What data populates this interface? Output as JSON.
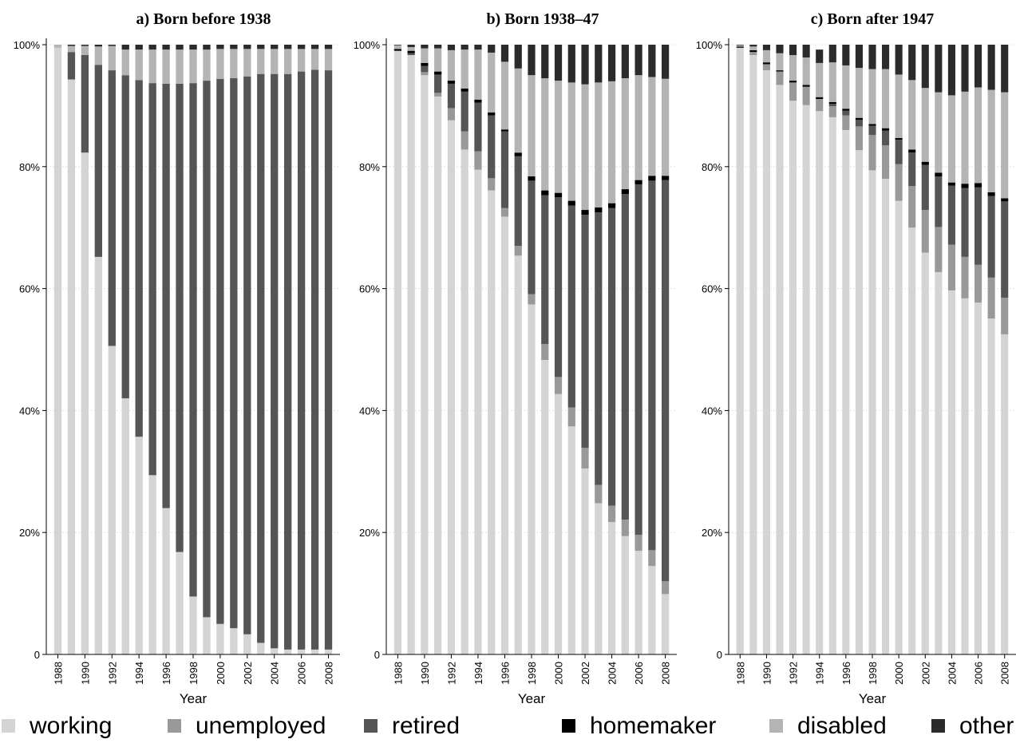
{
  "chart_data": {
    "type": "bar",
    "stacked": true,
    "x_label": "Year",
    "categories": [
      "1988",
      "1989",
      "1990",
      "1991",
      "1992",
      "1993",
      "1994",
      "1995",
      "1996",
      "1997",
      "1998",
      "1999",
      "2000",
      "2001",
      "2002",
      "2003",
      "2004",
      "2005",
      "2006",
      "2007",
      "2008"
    ],
    "x_tick_labels": [
      "1988",
      "1990",
      "1992",
      "1994",
      "1996",
      "1998",
      "2000",
      "2002",
      "2004",
      "2006",
      "2008"
    ],
    "series_order": [
      "working",
      "unemployed",
      "retired",
      "homemaker",
      "disabled",
      "other"
    ],
    "colors": {
      "working": "#d4d4d4",
      "unemployed": "#999999",
      "retired": "#555555",
      "homemaker": "#000000",
      "disabled": "#b4b4b4",
      "other": "#2b2b2b"
    },
    "legend": {
      "position": "bottom",
      "entries": [
        "working",
        "unemployed",
        "retired",
        "homemaker",
        "disabled",
        "other"
      ]
    },
    "panels": [
      {
        "title": "a)    Born before 1938",
        "y_tick_labels": [
          "0",
          "20%",
          "40%",
          "60%",
          "80%",
          "100%"
        ],
        "y_ticks": [
          0,
          20,
          40,
          60,
          80,
          100
        ],
        "ylim": [
          0,
          100
        ],
        "series": [
          {
            "name": "working",
            "values": [
              99.5,
              94.3,
              82.3,
              65.2,
              50.6,
              42.0,
              35.7,
              29.4,
              24.0,
              16.8,
              9.5,
              6.1,
              5.0,
              4.3,
              3.3,
              1.9,
              1.0,
              0.8,
              0.8,
              0.8,
              0.8
            ]
          },
          {
            "name": "unemployed",
            "values": [
              0,
              0,
              0,
              0,
              0,
              0,
              0,
              0,
              0,
              0,
              0,
              0,
              0,
              0,
              0,
              0,
              0,
              0,
              0,
              0,
              0
            ]
          },
          {
            "name": "retired",
            "values": [
              0,
              4.5,
              16.0,
              31.5,
              45.2,
              53.0,
              58.5,
              64.3,
              69.6,
              76.8,
              84.2,
              88.0,
              89.4,
              90.2,
              91.5,
              93.3,
              94.2,
              94.4,
              94.8,
              95.1,
              95.0
            ]
          },
          {
            "name": "homemaker",
            "values": [
              0,
              0,
              0,
              0,
              0,
              0,
              0,
              0,
              0,
              0,
              0,
              0,
              0,
              0,
              0,
              0,
              0,
              0,
              0,
              0,
              0
            ]
          },
          {
            "name": "disabled",
            "values": [
              0.5,
              1.0,
              1.5,
              3.0,
              4.0,
              4.2,
              5.0,
              5.5,
              5.6,
              5.6,
              5.5,
              5.1,
              4.9,
              4.8,
              4.5,
              4.1,
              4.1,
              4.1,
              3.7,
              3.4,
              3.5
            ]
          },
          {
            "name": "other",
            "values": [
              0,
              0.2,
              0.2,
              0.3,
              0.2,
              0.8,
              0.8,
              0.8,
              0.8,
              0.8,
              0.8,
              0.8,
              0.7,
              0.7,
              0.7,
              0.7,
              0.7,
              0.7,
              0.7,
              0.7,
              0.7
            ]
          }
        ]
      },
      {
        "title": "b)    Born 1938–47",
        "y_tick_labels": [
          "0",
          "20%",
          "40%",
          "60%",
          "80%",
          "100%"
        ],
        "y_ticks": [
          0,
          20,
          40,
          60,
          80,
          100
        ],
        "ylim": [
          0,
          100
        ],
        "series": [
          {
            "name": "working",
            "values": [
              99.0,
              98.3,
              95.0,
              91.5,
              87.6,
              82.8,
              79.5,
              76.1,
              71.8,
              65.4,
              57.4,
              48.3,
              42.7,
              37.4,
              30.5,
              24.8,
              21.7,
              19.4,
              17.0,
              14.5,
              9.9
            ]
          },
          {
            "name": "unemployed",
            "values": [
              0,
              0,
              0.5,
              0.6,
              2.0,
              3.0,
              3.0,
              2.0,
              1.4,
              1.6,
              1.7,
              2.6,
              2.8,
              3.1,
              3.4,
              3.0,
              2.7,
              2.7,
              2.6,
              2.6,
              2.1
            ]
          },
          {
            "name": "retired",
            "values": [
              0,
              0.3,
              1.0,
              3.0,
              4.0,
              6.5,
              8.0,
              10.3,
              12.6,
              14.7,
              18.6,
              24.4,
              29.5,
              33.1,
              38.2,
              44.7,
              48.8,
              53.4,
              57.5,
              60.6,
              65.8
            ]
          },
          {
            "name": "homemaker",
            "values": [
              0.3,
              0.4,
              0.5,
              0.5,
              0.5,
              0.5,
              0.5,
              0.5,
              0.3,
              0.6,
              0.7,
              0.8,
              0.7,
              0.8,
              0.8,
              0.8,
              0.8,
              0.8,
              0.7,
              0.8,
              0.7
            ]
          },
          {
            "name": "disabled",
            "values": [
              0.6,
              0.6,
              2.4,
              3.8,
              5.0,
              6.4,
              8.2,
              9.8,
              11.1,
              13.8,
              16.6,
              18.4,
              18.4,
              19.4,
              20.6,
              20.5,
              20.0,
              18.2,
              17.2,
              16.2,
              15.9
            ]
          },
          {
            "name": "other",
            "values": [
              0.1,
              0.4,
              0.6,
              0.6,
              0.9,
              0.8,
              0.8,
              1.3,
              2.8,
              3.9,
              5.0,
              5.5,
              5.9,
              6.2,
              6.5,
              6.2,
              6.0,
              5.5,
              5.0,
              5.3,
              5.6
            ]
          }
        ]
      },
      {
        "title": "c)    Born after 1947",
        "y_tick_labels": [
          "0",
          "20%",
          "40%",
          "60%",
          "80%",
          "100%"
        ],
        "y_ticks": [
          0,
          20,
          40,
          60,
          80,
          100
        ],
        "ylim": [
          0,
          100
        ],
        "series": [
          {
            "name": "working",
            "values": [
              99.5,
              98.3,
              95.8,
              93.4,
              90.8,
              90.1,
              89.1,
              88.1,
              86.0,
              82.7,
              79.4,
              78.0,
              74.4,
              70.0,
              65.9,
              62.7,
              59.7,
              58.4,
              57.7,
              55.1,
              52.5
            ]
          },
          {
            "name": "unemployed",
            "values": [
              0,
              0.5,
              1.0,
              2.2,
              3.0,
              3.0,
              2.0,
              1.8,
              2.4,
              3.9,
              5.8,
              5.5,
              6.0,
              6.8,
              7.0,
              7.4,
              7.5,
              6.8,
              6.2,
              6.7,
              6.0
            ]
          },
          {
            "name": "retired",
            "values": [
              0,
              0,
              0,
              0,
              0,
              0,
              0,
              0.4,
              0.8,
              1.1,
              1.5,
              2.4,
              4.0,
              5.5,
              7.4,
              8.3,
              9.7,
              11.3,
              12.7,
              13.4,
              15.8
            ]
          },
          {
            "name": "homemaker",
            "values": [
              0.2,
              0.3,
              0.3,
              0.2,
              0.3,
              0.3,
              0.3,
              0.3,
              0.3,
              0.3,
              0.3,
              0.4,
              0.3,
              0.5,
              0.5,
              0.6,
              0.5,
              0.7,
              0.7,
              0.6,
              0.5
            ]
          },
          {
            "name": "disabled",
            "values": [
              0.2,
              0.6,
              2.0,
              2.8,
              4.2,
              4.5,
              5.6,
              6.5,
              7.1,
              8.2,
              9.0,
              9.7,
              10.4,
              11.4,
              12.1,
              13.2,
              14.3,
              15.1,
              15.7,
              16.8,
              17.4
            ]
          },
          {
            "name": "other",
            "values": [
              0.1,
              0.3,
              0.9,
              1.4,
              1.7,
              2.1,
              2.2,
              2.9,
              3.4,
              3.8,
              4.0,
              4.0,
              4.9,
              5.8,
              7.1,
              7.8,
              8.3,
              7.7,
              7.0,
              7.4,
              7.8
            ]
          }
        ]
      }
    ]
  }
}
